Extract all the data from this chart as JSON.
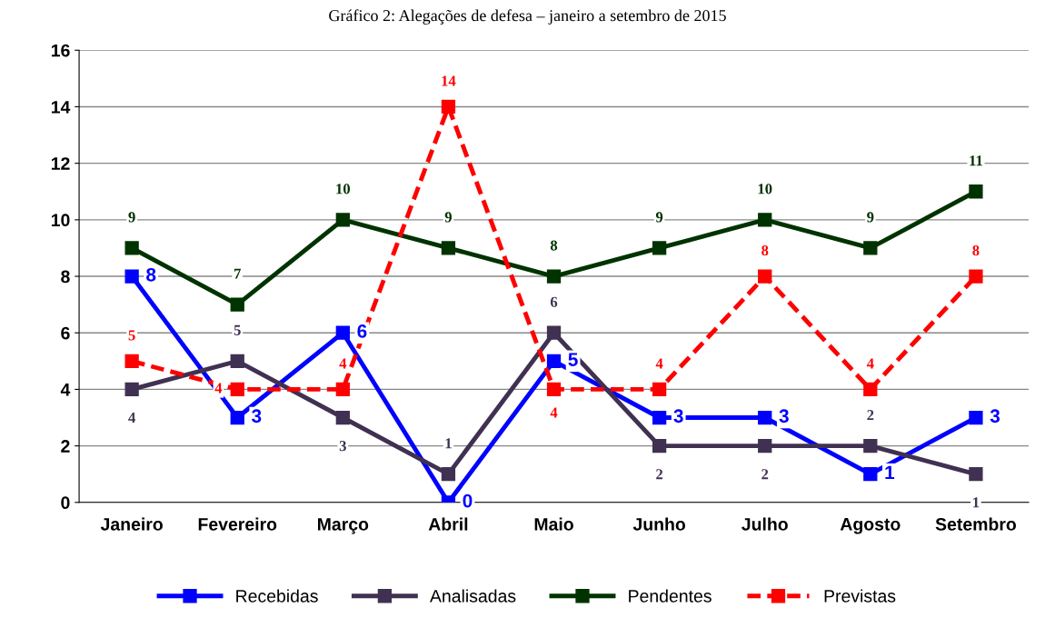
{
  "chart_data": {
    "type": "line",
    "title": "Gráfico 2: Alegações de defesa – janeiro a setembro de 2015",
    "categories": [
      "Janeiro",
      "Fevereiro",
      "Março",
      "Abril",
      "Maio",
      "Junho",
      "Julho",
      "Agosto",
      "Setembro"
    ],
    "series": [
      {
        "name": "Recebidas",
        "color": "#0000ff",
        "values": [
          8,
          3,
          6,
          0,
          5,
          3,
          3,
          1,
          3
        ]
      },
      {
        "name": "Analisadas",
        "color": "#403152",
        "values": [
          4,
          5,
          3,
          1,
          6,
          2,
          2,
          2,
          1
        ]
      },
      {
        "name": "Pendentes",
        "color": "#003300",
        "values": [
          9,
          7,
          10,
          9,
          8,
          9,
          10,
          9,
          11
        ]
      },
      {
        "name": "Previstas",
        "color": "#ff0000",
        "values": [
          5,
          4,
          4,
          14,
          4,
          4,
          8,
          4,
          8
        ],
        "line_style": "dashed"
      }
    ],
    "ylim": [
      0,
      16
    ],
    "yticks": [
      0,
      2,
      4,
      6,
      8,
      10,
      12,
      14,
      16
    ],
    "grid": "y",
    "legend": "bottom",
    "marker": "square",
    "data_labels": true
  }
}
